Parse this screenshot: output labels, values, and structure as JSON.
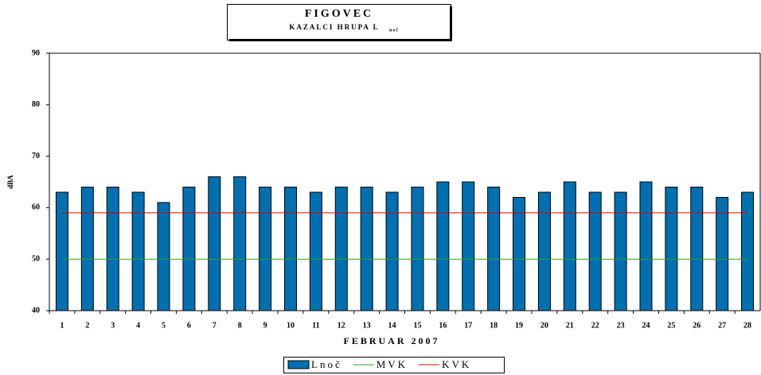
{
  "chart_data": {
    "type": "bar",
    "title": "FIGOVEC",
    "subtitle": "KAZALCI HRUPA L",
    "subtitle_subscript": "noč",
    "y_label": "dBA",
    "x_label": "FEBRUAR 2007",
    "categories": [
      "1",
      "2",
      "3",
      "4",
      "5",
      "6",
      "7",
      "8",
      "9",
      "10",
      "11",
      "12",
      "13",
      "14",
      "15",
      "16",
      "17",
      "18",
      "19",
      "20",
      "21",
      "22",
      "23",
      "24",
      "25",
      "26",
      "27",
      "28"
    ],
    "series": [
      {
        "name": "Lnoč",
        "color": "#0070b0",
        "type": "bar",
        "values": [
          63,
          64,
          64,
          63,
          61,
          64,
          66,
          66,
          64,
          64,
          63,
          64,
          64,
          63,
          64,
          65,
          65,
          64,
          62,
          63,
          65,
          63,
          63,
          65,
          64,
          64,
          62,
          63
        ]
      },
      {
        "name": "MVK",
        "color": "#2ca02c",
        "type": "line",
        "values": [
          50,
          50,
          50,
          50,
          50,
          50,
          50,
          50,
          50,
          50,
          50,
          50,
          50,
          50,
          50,
          50,
          50,
          50,
          50,
          50,
          50,
          50,
          50,
          50,
          50,
          50,
          50,
          50
        ]
      },
      {
        "name": "KVK",
        "color": "#e00000",
        "type": "line",
        "values": [
          59,
          59,
          59,
          59,
          59,
          59,
          59,
          59,
          59,
          59,
          59,
          59,
          59,
          59,
          59,
          59,
          59,
          59,
          59,
          59,
          59,
          59,
          59,
          59,
          59,
          59,
          59,
          59
        ]
      }
    ],
    "ylim": [
      40,
      90
    ],
    "yticks": [
      40,
      50,
      60,
      70,
      80,
      90
    ],
    "grid": false,
    "legend": "bottom"
  }
}
